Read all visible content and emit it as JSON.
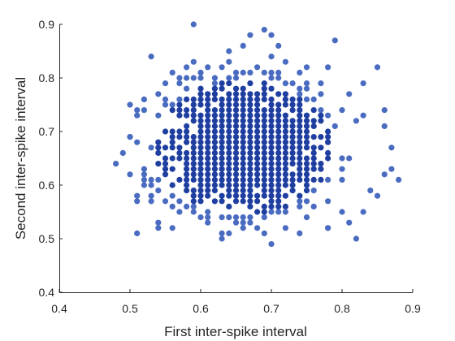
{
  "chart_data": {
    "type": "scatter",
    "title": "",
    "xlabel": "First inter-spike interval",
    "ylabel": "Second inter-spike interval",
    "xlim": [
      0.4,
      0.9
    ],
    "ylim": [
      0.4,
      0.9
    ],
    "xticks": [
      0.4,
      0.5,
      0.6,
      0.7,
      0.8,
      0.9
    ],
    "yticks": [
      0.4,
      0.5,
      0.6,
      0.7,
      0.8,
      0.9
    ],
    "xtick_labels": [
      "0.4",
      "0.5",
      "0.6",
      "0.7",
      "0.8",
      "0.9"
    ],
    "ytick_labels": [
      "0.4",
      "0.5",
      "0.6",
      "0.7",
      "0.8",
      "0.9"
    ],
    "grid": false,
    "legend": "none",
    "colors": {
      "marker": "#1f3fa0",
      "marker_light": "#4a6cc0",
      "axis": "#262626"
    },
    "series": [
      {
        "points": [
          [
            0.59,
            0.9
          ],
          [
            0.69,
            0.89
          ],
          [
            0.67,
            0.88
          ],
          [
            0.7,
            0.88
          ],
          [
            0.79,
            0.87
          ],
          [
            0.71,
            0.86
          ],
          [
            0.66,
            0.86
          ],
          [
            0.64,
            0.85
          ],
          [
            0.53,
            0.84
          ],
          [
            0.85,
            0.82
          ],
          [
            0.59,
            0.83
          ],
          [
            0.61,
            0.82
          ],
          [
            0.75,
            0.82
          ],
          [
            0.78,
            0.82
          ],
          [
            0.56,
            0.81
          ],
          [
            0.57,
            0.8
          ],
          [
            0.83,
            0.79
          ],
          [
            0.55,
            0.79
          ],
          [
            0.52,
            0.76
          ],
          [
            0.54,
            0.77
          ],
          [
            0.81,
            0.77
          ],
          [
            0.86,
            0.74
          ],
          [
            0.51,
            0.74
          ],
          [
            0.83,
            0.73
          ],
          [
            0.5,
            0.69
          ],
          [
            0.86,
            0.71
          ],
          [
            0.49,
            0.66
          ],
          [
            0.87,
            0.67
          ],
          [
            0.48,
            0.64
          ],
          [
            0.5,
            0.62
          ],
          [
            0.52,
            0.61
          ],
          [
            0.87,
            0.63
          ],
          [
            0.88,
            0.61
          ],
          [
            0.86,
            0.62
          ],
          [
            0.51,
            0.58
          ],
          [
            0.85,
            0.58
          ],
          [
            0.53,
            0.57
          ],
          [
            0.84,
            0.59
          ],
          [
            0.51,
            0.51
          ],
          [
            0.82,
            0.5
          ],
          [
            0.54,
            0.53
          ],
          [
            0.81,
            0.53
          ],
          [
            0.83,
            0.55
          ],
          [
            0.56,
            0.52
          ],
          [
            0.7,
            0.49
          ],
          [
            0.63,
            0.5
          ],
          [
            0.74,
            0.51
          ],
          [
            0.78,
            0.52
          ]
        ]
      }
    ],
    "cluster": {
      "center": [
        0.66,
        0.67
      ],
      "spread": [
        0.052,
        0.06
      ],
      "count": 1500,
      "step": 0.01
    }
  }
}
